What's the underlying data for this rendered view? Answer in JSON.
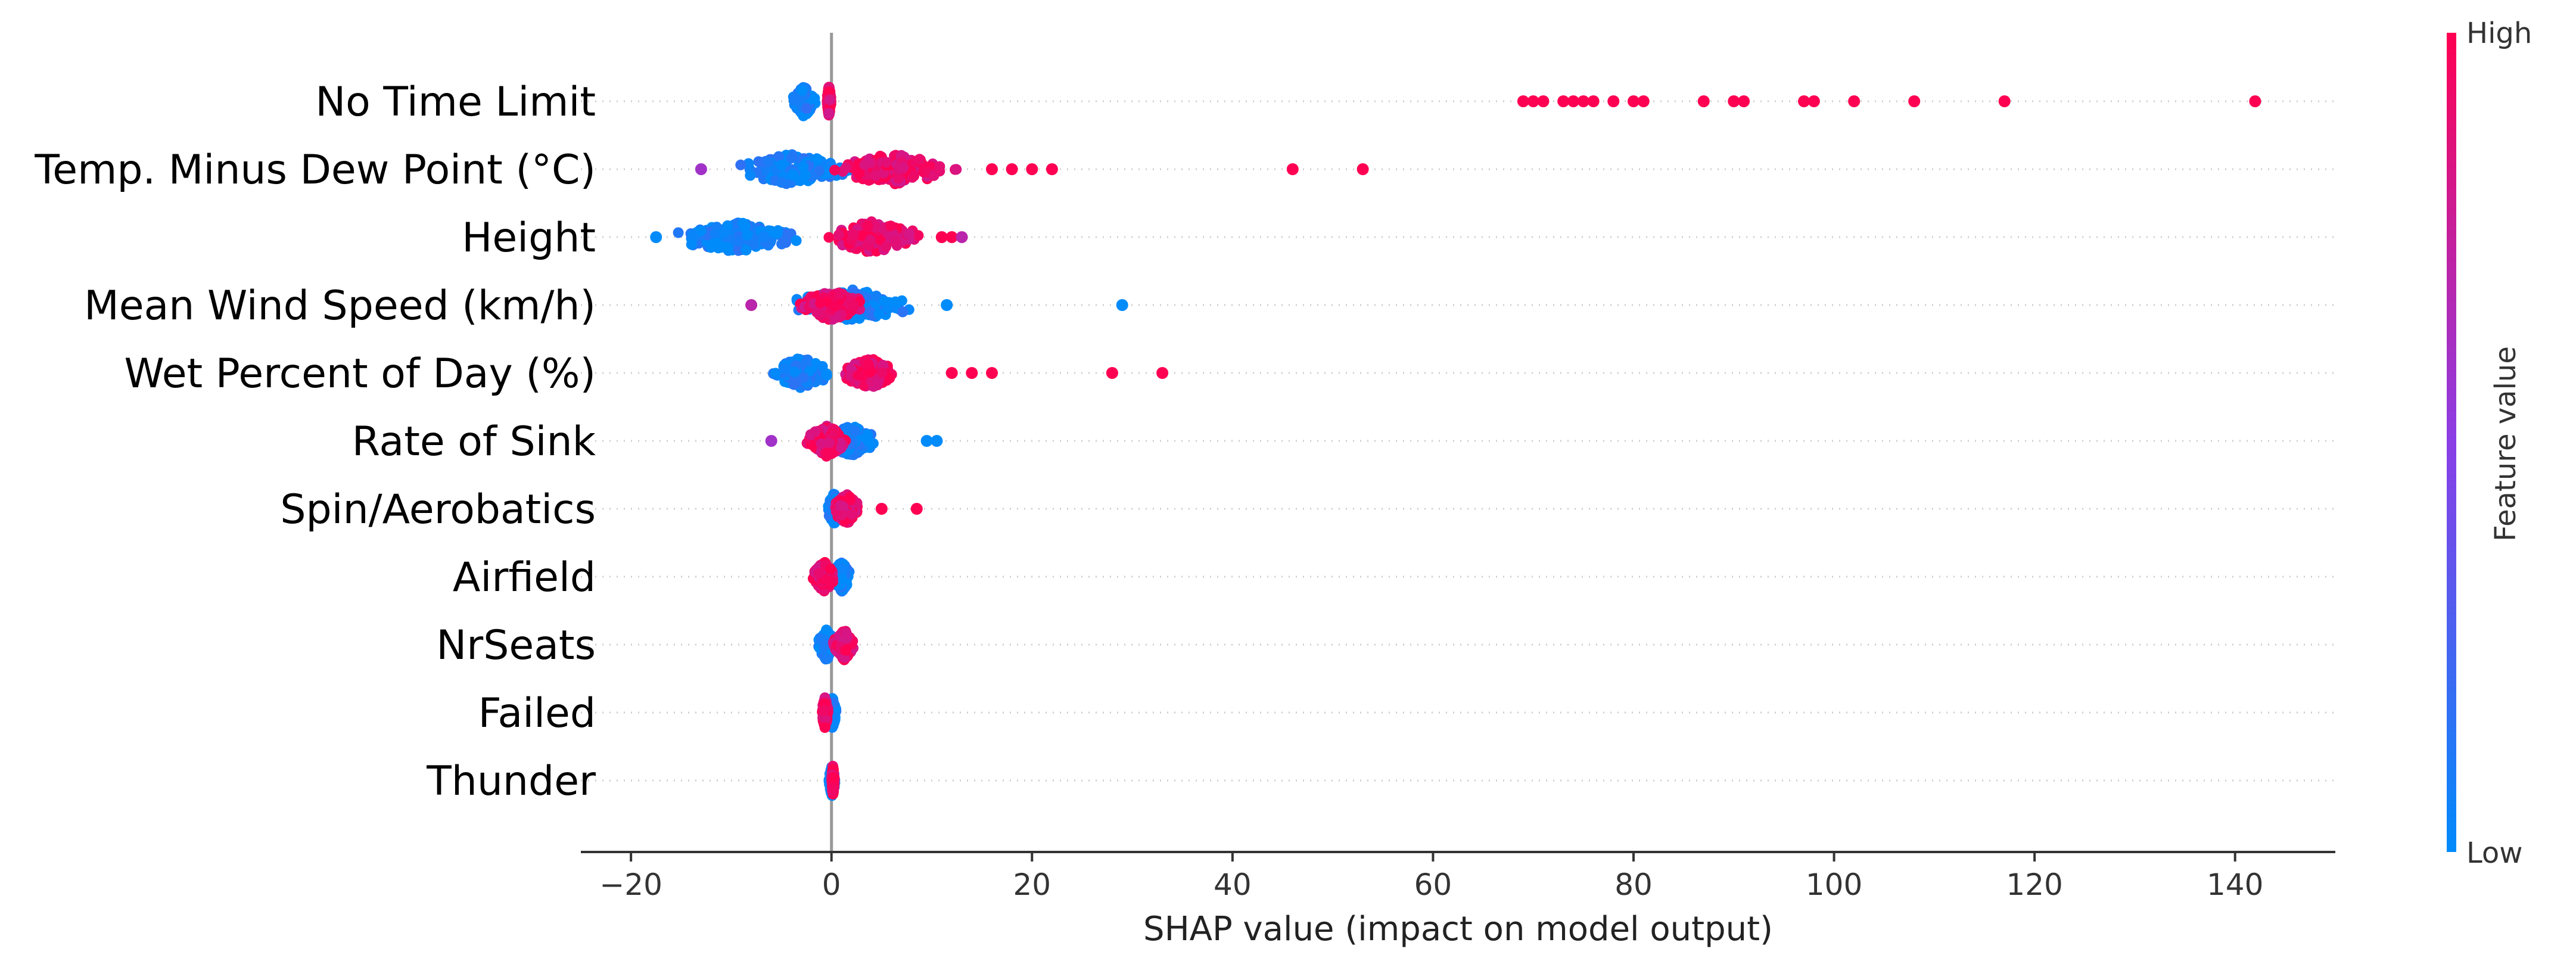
{
  "chart_data": {
    "type": "scatter",
    "subtype": "shap-beeswarm",
    "title": "",
    "xlabel": "SHAP value (impact on model output)",
    "xlim": [
      -25,
      150
    ],
    "xticks": [
      -20,
      0,
      20,
      40,
      60,
      80,
      100,
      120,
      140
    ],
    "tick_labels": [
      "−20",
      "0",
      "20",
      "40",
      "60",
      "80",
      "100",
      "120",
      "140"
    ],
    "grid": false,
    "colorbar": {
      "label": "Feature value",
      "high_label": "High",
      "low_label": "Low",
      "high_color": "#ff0052",
      "low_color": "#008bfb"
    },
    "features": [
      {
        "name": "No Time Limit",
        "low_cluster": [
          -4,
          -1.5
        ],
        "high_cluster": [
          -0.5,
          0
        ],
        "outliers": [
          [
            69,
            1
          ],
          [
            70,
            1
          ],
          [
            71,
            1
          ],
          [
            73,
            1
          ],
          [
            74,
            1
          ],
          [
            75,
            1
          ],
          [
            76,
            1
          ],
          [
            78,
            1
          ],
          [
            80,
            1
          ],
          [
            81,
            1
          ],
          [
            87,
            1
          ],
          [
            90,
            1
          ],
          [
            91,
            1
          ],
          [
            97,
            1
          ],
          [
            98,
            1
          ],
          [
            102,
            1
          ],
          [
            108,
            1
          ],
          [
            117,
            1
          ],
          [
            142,
            1
          ]
        ]
      },
      {
        "name": "Temp. Minus Dew Point (°C)",
        "low_cluster": [
          -11,
          3
        ],
        "high_cluster": [
          -2,
          14
        ],
        "outliers": [
          [
            -13,
            0.6
          ],
          [
            16,
            1
          ],
          [
            18,
            1
          ],
          [
            20,
            1
          ],
          [
            22,
            1
          ],
          [
            46,
            1
          ],
          [
            53,
            1
          ]
        ]
      },
      {
        "name": "Height",
        "low_cluster": [
          -17,
          -2
        ],
        "high_cluster": [
          -2,
          10
        ],
        "outliers": [
          [
            -17.5,
            0
          ],
          [
            11,
            1
          ],
          [
            12,
            1
          ],
          [
            13,
            0.7
          ]
        ]
      },
      {
        "name": "Mean Wind Speed (km/h)",
        "low_cluster": [
          -6,
          10
        ],
        "high_cluster": [
          -4,
          4
        ],
        "outliers": [
          [
            -8,
            0.7
          ],
          [
            11.5,
            0
          ],
          [
            29,
            0
          ]
        ]
      },
      {
        "name": "Wet  Percent of Day (%)",
        "low_cluster": [
          -6.5,
          0.5
        ],
        "high_cluster": [
          0.5,
          7
        ],
        "outliers": [
          [
            12,
            1
          ],
          [
            14,
            1
          ],
          [
            16,
            1
          ],
          [
            28,
            1
          ],
          [
            33,
            1
          ]
        ]
      },
      {
        "name": "Rate of Sink",
        "low_cluster": [
          -1,
          5
        ],
        "high_cluster": [
          -3,
          2
        ],
        "outliers": [
          [
            -6,
            0.6
          ],
          [
            9.5,
            0
          ],
          [
            10.5,
            0
          ]
        ]
      },
      {
        "name": "Spin/Aerobatics",
        "low_cluster": [
          -0.5,
          1
        ],
        "high_cluster": [
          0,
          3
        ],
        "outliers": [
          [
            5,
            1
          ],
          [
            8.5,
            1
          ]
        ]
      },
      {
        "name": "Airfield",
        "low_cluster": [
          0,
          2
        ],
        "high_cluster": [
          -2,
          0.5
        ],
        "outliers": []
      },
      {
        "name": "NrSeats",
        "low_cluster": [
          -1.5,
          0.5
        ],
        "high_cluster": [
          0,
          2.5
        ],
        "outliers": []
      },
      {
        "name": "Failed",
        "low_cluster": [
          -0.3,
          0.5
        ],
        "high_cluster": [
          -1,
          -0.3
        ],
        "outliers": []
      },
      {
        "name": "Thunder",
        "low_cluster": [
          -0.3,
          0.4
        ],
        "high_cluster": [
          0,
          0.3
        ],
        "outliers": []
      }
    ]
  }
}
